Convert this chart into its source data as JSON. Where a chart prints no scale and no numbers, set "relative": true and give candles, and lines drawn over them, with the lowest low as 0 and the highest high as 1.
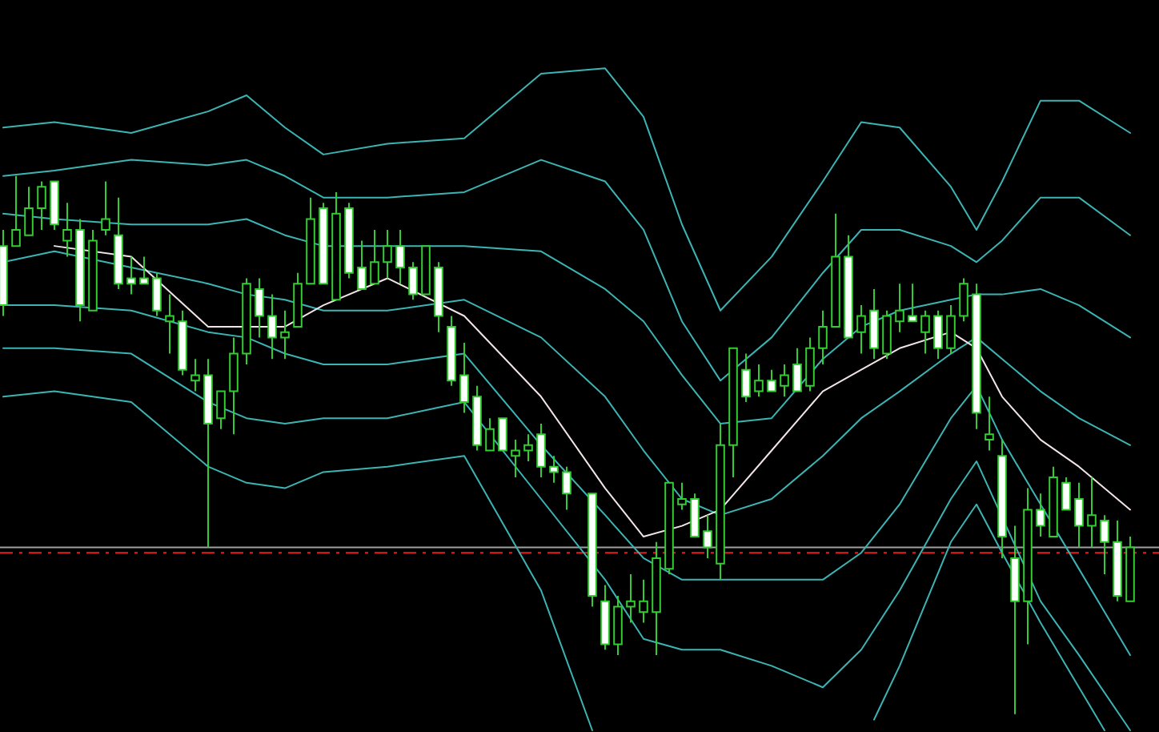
{
  "chart_data": {
    "type": "candlestick",
    "relative": true,
    "color": "#33cc33",
    "categories": [
      null,
      null,
      null,
      null,
      null,
      null,
      null,
      null,
      null,
      null,
      null,
      null,
      null,
      null,
      null,
      null,
      null,
      null,
      null,
      null,
      null,
      null,
      null,
      null,
      null,
      null,
      null,
      null,
      null,
      null,
      null,
      null,
      null,
      null,
      null,
      null,
      null,
      null,
      null,
      null,
      null,
      null,
      null,
      null,
      null,
      null,
      null,
      null,
      null,
      null,
      null,
      null,
      null,
      null,
      null,
      null,
      null,
      null,
      null,
      null,
      null,
      null,
      null,
      null,
      null,
      null,
      null,
      null,
      null,
      null,
      null,
      null,
      null,
      null,
      null,
      null,
      null,
      null,
      null,
      null,
      null,
      null,
      null,
      null,
      null,
      null,
      null,
      null,
      null
    ],
    "ohlc": [
      [
        0.87,
        0.9,
        0.74,
        0.76
      ],
      [
        0.87,
        1.0,
        0.87,
        0.9
      ],
      [
        0.89,
        0.98,
        0.89,
        0.94
      ],
      [
        0.94,
        0.99,
        0.9,
        0.98
      ],
      [
        0.99,
        0.99,
        0.9,
        0.91
      ],
      [
        0.88,
        0.95,
        0.85,
        0.9
      ],
      [
        0.9,
        0.92,
        0.73,
        0.76
      ],
      [
        0.75,
        0.9,
        0.75,
        0.88
      ],
      [
        0.9,
        0.99,
        0.89,
        0.92
      ],
      [
        0.89,
        0.96,
        0.79,
        0.8
      ],
      [
        0.81,
        0.85,
        0.78,
        0.8
      ],
      [
        0.81,
        0.85,
        0.8,
        0.8
      ],
      [
        0.81,
        0.82,
        0.74,
        0.75
      ],
      [
        0.73,
        0.78,
        0.67,
        0.74
      ],
      [
        0.73,
        0.75,
        0.63,
        0.64
      ],
      [
        0.62,
        0.66,
        0.6,
        0.63
      ],
      [
        0.63,
        0.66,
        0.31,
        0.54
      ],
      [
        0.55,
        0.6,
        0.53,
        0.6
      ],
      [
        0.6,
        0.7,
        0.52,
        0.67
      ],
      [
        0.67,
        0.81,
        0.65,
        0.8
      ],
      [
        0.79,
        0.81,
        0.7,
        0.74
      ],
      [
        0.74,
        0.78,
        0.66,
        0.7
      ],
      [
        0.7,
        0.75,
        0.66,
        0.71
      ],
      [
        0.72,
        0.82,
        0.72,
        0.8
      ],
      [
        0.8,
        0.96,
        0.8,
        0.92
      ],
      [
        0.94,
        0.95,
        0.8,
        0.8
      ],
      [
        0.77,
        0.97,
        0.77,
        0.93
      ],
      [
        0.94,
        0.95,
        0.81,
        0.82
      ],
      [
        0.83,
        0.88,
        0.79,
        0.79
      ],
      [
        0.8,
        0.9,
        0.8,
        0.84
      ],
      [
        0.84,
        0.9,
        0.81,
        0.87
      ],
      [
        0.87,
        0.9,
        0.8,
        0.83
      ],
      [
        0.83,
        0.84,
        0.77,
        0.78
      ],
      [
        0.78,
        0.87,
        0.78,
        0.87
      ],
      [
        0.83,
        0.84,
        0.71,
        0.74
      ],
      [
        0.72,
        0.74,
        0.61,
        0.62
      ],
      [
        0.63,
        0.69,
        0.56,
        0.58
      ],
      [
        0.59,
        0.61,
        0.49,
        0.5
      ],
      [
        0.49,
        0.55,
        0.49,
        0.53
      ],
      [
        0.55,
        0.55,
        0.49,
        0.49
      ],
      [
        0.48,
        0.51,
        0.44,
        0.49
      ],
      [
        0.49,
        0.52,
        0.47,
        0.5
      ],
      [
        0.52,
        0.54,
        0.44,
        0.46
      ],
      [
        0.46,
        0.48,
        0.43,
        0.45
      ],
      [
        0.45,
        0.46,
        0.38,
        0.41
      ],
      null,
      [
        0.41,
        0.41,
        0.2,
        0.22
      ],
      [
        0.21,
        0.24,
        0.12,
        0.13
      ],
      [
        0.13,
        0.22,
        0.11,
        0.2
      ],
      [
        0.2,
        0.26,
        0.17,
        0.21
      ],
      [
        0.19,
        0.25,
        0.17,
        0.21
      ],
      [
        0.19,
        0.32,
        0.11,
        0.29
      ],
      [
        0.27,
        0.43,
        0.26,
        0.43
      ],
      [
        0.39,
        0.43,
        0.38,
        0.4
      ],
      [
        0.4,
        0.41,
        0.33,
        0.33
      ],
      [
        0.34,
        0.37,
        0.29,
        0.31
      ],
      [
        0.28,
        0.54,
        0.25,
        0.5
      ],
      [
        0.5,
        0.68,
        0.44,
        0.68
      ],
      [
        0.64,
        0.67,
        0.58,
        0.59
      ],
      [
        0.6,
        0.65,
        0.59,
        0.62
      ],
      [
        0.62,
        0.64,
        0.6,
        0.6
      ],
      [
        0.61,
        0.65,
        0.59,
        0.63
      ],
      [
        0.65,
        0.68,
        0.6,
        0.6
      ],
      [
        0.61,
        0.7,
        0.6,
        0.68
      ],
      [
        0.68,
        0.75,
        0.65,
        0.72
      ],
      [
        0.72,
        0.93,
        0.72,
        0.85
      ],
      [
        0.85,
        0.89,
        0.7,
        0.7
      ],
      [
        0.71,
        0.76,
        0.67,
        0.74
      ],
      [
        0.75,
        0.79,
        0.66,
        0.68
      ],
      [
        0.67,
        0.75,
        0.66,
        0.74
      ],
      [
        0.73,
        0.8,
        0.71,
        0.75
      ],
      [
        0.74,
        0.8,
        0.73,
        0.73
      ],
      [
        0.71,
        0.75,
        0.67,
        0.74
      ],
      [
        0.74,
        0.75,
        0.66,
        0.68
      ],
      [
        0.68,
        0.76,
        0.67,
        0.74
      ],
      [
        0.74,
        0.81,
        0.73,
        0.8
      ],
      [
        0.78,
        0.8,
        0.53,
        0.56
      ],
      [
        0.51,
        0.59,
        0.49,
        0.52
      ],
      [
        0.48,
        0.51,
        0.29,
        0.33
      ],
      [
        0.29,
        0.35,
        0.0,
        0.21
      ],
      [
        0.21,
        0.42,
        0.13,
        0.38
      ],
      [
        0.38,
        0.41,
        0.33,
        0.35
      ],
      [
        0.33,
        0.46,
        0.33,
        0.44
      ],
      [
        0.43,
        0.44,
        0.38,
        0.38
      ],
      [
        0.4,
        0.43,
        0.31,
        0.35
      ],
      [
        0.35,
        0.44,
        0.31,
        0.37
      ],
      [
        0.36,
        0.37,
        0.26,
        0.32
      ],
      [
        0.32,
        0.36,
        0.21,
        0.22
      ],
      [
        0.21,
        0.33,
        0.21,
        0.31
      ]
    ],
    "series": [
      {
        "type": "line",
        "color": "#3cb4b4",
        "values": [
          1.09,
          null,
          null,
          null,
          1.1,
          null,
          null,
          null,
          null,
          null,
          1.08,
          null,
          null,
          null,
          null,
          null,
          1.12,
          null,
          null,
          1.15,
          null,
          null,
          1.09,
          null,
          null,
          1.04,
          null,
          null,
          null,
          null,
          1.06,
          null,
          null,
          null,
          null,
          null,
          1.07,
          null,
          null,
          null,
          null,
          null,
          1.19,
          null,
          null,
          null,
          null,
          1.2,
          null,
          null,
          1.11,
          null,
          null,
          0.91,
          null,
          null,
          0.75,
          null,
          null,
          null,
          0.85,
          null,
          null,
          null,
          0.99,
          null,
          null,
          1.1,
          null,
          null,
          1.09,
          null,
          null,
          null,
          0.98,
          null,
          0.9,
          null,
          0.99,
          null,
          null,
          1.14,
          null,
          null,
          1.14,
          null,
          null,
          null,
          1.08
        ]
      },
      {
        "type": "line",
        "color": "#3cb4b4",
        "values": [
          1.0,
          null,
          null,
          null,
          1.01,
          null,
          null,
          null,
          null,
          null,
          1.03,
          null,
          null,
          null,
          null,
          null,
          1.02,
          null,
          null,
          1.03,
          null,
          null,
          1.0,
          null,
          null,
          0.96,
          null,
          null,
          null,
          null,
          0.96,
          null,
          null,
          null,
          null,
          null,
          0.97,
          null,
          null,
          null,
          null,
          null,
          1.03,
          null,
          null,
          null,
          null,
          0.99,
          null,
          null,
          0.9,
          null,
          null,
          0.73,
          null,
          null,
          0.62,
          null,
          null,
          null,
          0.7,
          null,
          null,
          null,
          0.82,
          null,
          null,
          0.9,
          null,
          null,
          0.9,
          null,
          null,
          null,
          0.87,
          null,
          0.84,
          null,
          0.88,
          null,
          null,
          0.96,
          null,
          null,
          0.96,
          null,
          null,
          null,
          0.89
        ]
      },
      {
        "type": "line",
        "color": "#3cb4b4",
        "values": [
          0.93,
          null,
          null,
          null,
          0.92,
          null,
          null,
          null,
          null,
          null,
          0.91,
          null,
          null,
          null,
          null,
          null,
          0.91,
          null,
          null,
          0.92,
          null,
          null,
          0.89,
          null,
          null,
          0.87,
          null,
          null,
          null,
          null,
          0.87,
          null,
          null,
          null,
          null,
          null,
          0.87,
          null,
          null,
          null,
          null,
          null,
          0.86,
          null,
          null,
          null,
          null,
          0.79,
          null,
          null,
          0.73,
          null,
          null,
          0.63,
          null,
          null,
          0.54,
          null,
          null,
          null,
          0.55,
          null,
          null,
          null,
          0.66,
          null,
          null,
          0.72,
          null,
          null,
          0.75,
          null,
          null,
          null,
          0.77,
          null,
          0.78,
          null,
          0.78,
          null,
          null,
          0.79,
          null,
          null,
          0.76,
          null,
          null,
          null,
          0.7
        ]
      },
      {
        "type": "line",
        "color": "#3cb4b4",
        "values": [
          0.84,
          null,
          null,
          null,
          0.86,
          null,
          null,
          null,
          null,
          null,
          0.83,
          null,
          null,
          null,
          null,
          null,
          0.8,
          null,
          null,
          0.78,
          null,
          null,
          0.77,
          null,
          null,
          0.75,
          null,
          null,
          null,
          null,
          0.75,
          null,
          null,
          null,
          null,
          null,
          0.77,
          null,
          null,
          null,
          null,
          null,
          0.7,
          null,
          null,
          null,
          null,
          0.59,
          null,
          null,
          0.49,
          null,
          null,
          0.4,
          null,
          null,
          0.37,
          null,
          null,
          null,
          0.4,
          null,
          null,
          null,
          0.48,
          null,
          null,
          0.55,
          null,
          null,
          0.6,
          null,
          null,
          null,
          0.67,
          null,
          0.7,
          null,
          0.66,
          null,
          null,
          0.6,
          null,
          null,
          0.55,
          null,
          null,
          null,
          0.5
        ]
      },
      {
        "type": "line",
        "color": "#f2e4e4",
        "values": [
          null,
          null,
          null,
          null,
          0.87,
          null,
          null,
          null,
          null,
          null,
          0.85,
          null,
          null,
          null,
          null,
          null,
          0.72,
          null,
          null,
          0.72,
          null,
          null,
          0.72,
          null,
          null,
          0.76,
          null,
          null,
          null,
          null,
          0.81,
          null,
          null,
          null,
          null,
          null,
          0.74,
          null,
          null,
          null,
          null,
          null,
          0.59,
          null,
          null,
          null,
          null,
          0.42,
          null,
          null,
          0.33,
          null,
          null,
          0.35,
          null,
          null,
          0.38,
          null,
          null,
          null,
          0.49,
          null,
          null,
          null,
          0.6,
          null,
          null,
          0.64,
          null,
          null,
          0.68,
          null,
          null,
          null,
          0.71,
          null,
          0.68,
          null,
          0.59,
          null,
          null,
          0.51,
          null,
          null,
          0.46,
          null,
          null,
          null,
          0.38
        ]
      },
      {
        "type": "line",
        "color": "#3cb4b4",
        "values": [
          0.76,
          null,
          null,
          null,
          0.76,
          null,
          null,
          null,
          null,
          null,
          0.75,
          null,
          null,
          null,
          null,
          null,
          0.71,
          null,
          null,
          0.7,
          null,
          null,
          0.67,
          null,
          null,
          0.65,
          null,
          null,
          null,
          null,
          0.65,
          null,
          null,
          null,
          null,
          null,
          0.67,
          null,
          null,
          null,
          null,
          null,
          0.5,
          null,
          null,
          null,
          null,
          0.37,
          null,
          null,
          0.29,
          null,
          null,
          0.25,
          null,
          null,
          0.25,
          null,
          null,
          null,
          0.25,
          null,
          null,
          null,
          0.25,
          null,
          null,
          0.3,
          null,
          null,
          0.39,
          null,
          null,
          null,
          0.55,
          null,
          0.61,
          null,
          0.51,
          null,
          null,
          0.39,
          null,
          null,
          0.27,
          null,
          null,
          null,
          0.11
        ]
      },
      {
        "type": "line",
        "color": "#3cb4b4",
        "values": [
          0.68,
          null,
          null,
          null,
          0.68,
          null,
          null,
          null,
          null,
          null,
          0.67,
          null,
          null,
          null,
          null,
          null,
          0.58,
          null,
          null,
          0.55,
          null,
          null,
          0.54,
          null,
          null,
          0.55,
          null,
          null,
          null,
          null,
          0.55,
          null,
          null,
          null,
          null,
          null,
          0.58,
          null,
          null,
          null,
          null,
          null,
          0.4,
          null,
          null,
          null,
          null,
          0.25,
          null,
          null,
          0.14,
          null,
          null,
          0.12,
          null,
          null,
          0.12,
          null,
          null,
          null,
          0.09,
          null,
          null,
          null,
          0.05,
          null,
          null,
          0.12,
          null,
          null,
          0.23,
          null,
          null,
          null,
          0.4,
          null,
          0.47,
          null,
          null,
          null,
          null,
          0.21,
          null,
          null,
          0.11,
          null,
          null,
          null,
          -0.03
        ]
      },
      {
        "type": "line",
        "color": "#3cb4b4",
        "values": [
          0.59,
          null,
          null,
          null,
          0.6,
          null,
          null,
          null,
          null,
          null,
          0.58,
          null,
          null,
          null,
          null,
          null,
          0.46,
          null,
          null,
          0.43,
          null,
          null,
          0.42,
          null,
          null,
          0.45,
          null,
          null,
          null,
          null,
          0.46,
          null,
          null,
          null,
          null,
          null,
          0.48,
          null,
          null,
          null,
          null,
          null,
          0.23,
          null,
          null,
          null,
          -0.03,
          null,
          null,
          null,
          null,
          null,
          null,
          null,
          null,
          null,
          null,
          null,
          null,
          null,
          null,
          null,
          null,
          null,
          null,
          null,
          null,
          null,
          null,
          null,
          null,
          null,
          null,
          null,
          null,
          null,
          null,
          null,
          null,
          null,
          null,
          null,
          null,
          null,
          null,
          null,
          null,
          null,
          null
        ]
      },
      {
        "type": "line",
        "color": "#3cb4b4",
        "values": [
          null,
          null,
          null,
          null,
          null,
          null,
          null,
          null,
          null,
          null,
          null,
          null,
          null,
          null,
          null,
          null,
          null,
          null,
          null,
          null,
          null,
          null,
          null,
          null,
          null,
          null,
          null,
          null,
          null,
          null,
          null,
          null,
          null,
          null,
          null,
          null,
          null,
          null,
          null,
          null,
          null,
          null,
          null,
          null,
          null,
          null,
          null,
          null,
          null,
          null,
          null,
          null,
          null,
          null,
          null,
          null,
          null,
          null,
          null,
          null,
          null,
          null,
          null,
          null,
          null,
          null,
          null,
          null,
          -0.01,
          null,
          0.09,
          null,
          null,
          null,
          0.32,
          null,
          0.39,
          null,
          0.3,
          null,
          null,
          0.17,
          null,
          null,
          0.05,
          null,
          -0.03,
          null,
          null
        ]
      }
    ],
    "ref_lines": [
      {
        "axis": "y",
        "value": 0.31,
        "color": "#a0a0a0"
      },
      {
        "axis": "y",
        "value": 0.3,
        "color": "#e02020",
        "line_style": "dashed"
      }
    ]
  }
}
